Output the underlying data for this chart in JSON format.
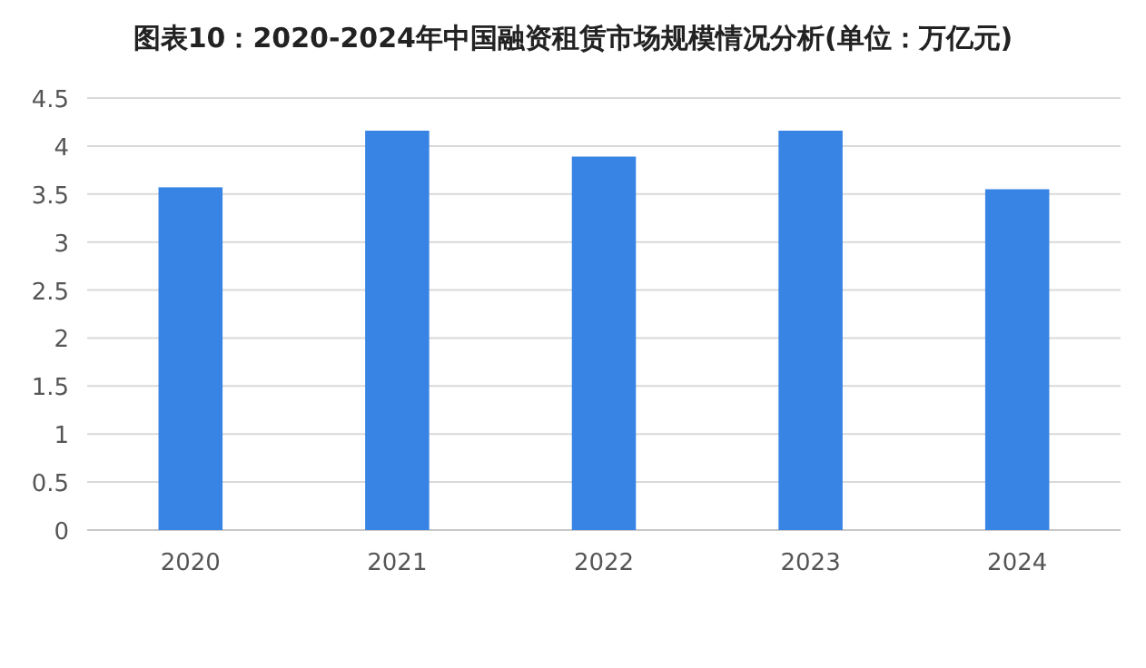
{
  "chart_data": {
    "type": "bar",
    "title": "图表10：2020-2024年中国融资租赁市场规模情况分析(单位：万亿元)",
    "categories": [
      "2020",
      "2021",
      "2022",
      "2023",
      "2024"
    ],
    "values": [
      3.57,
      4.16,
      3.89,
      4.16,
      3.55
    ],
    "color": "#3884e4",
    "ylim": [
      0,
      4.5
    ],
    "yticks": [
      0,
      0.5,
      1,
      1.5,
      2,
      2.5,
      3,
      3.5,
      4,
      4.5
    ],
    "grid": "y"
  }
}
